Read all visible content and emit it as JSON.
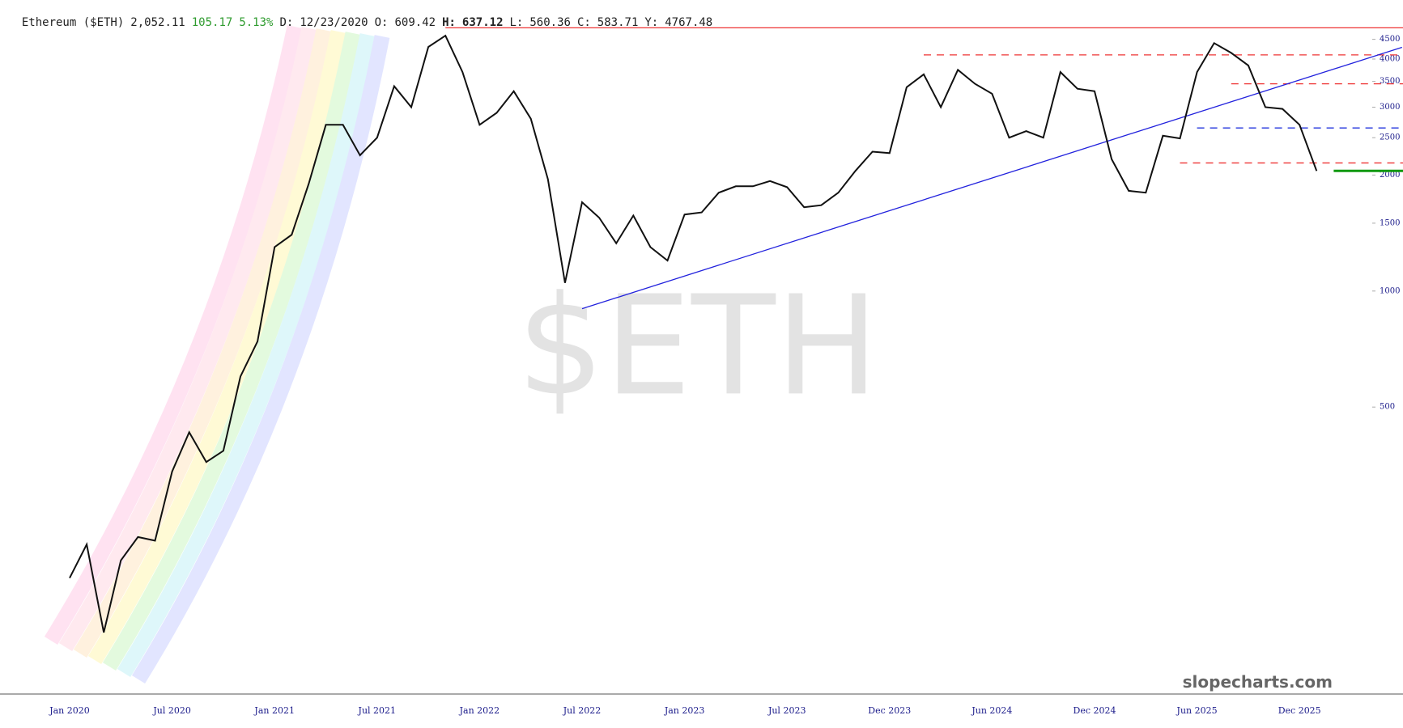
{
  "chart_data": {
    "type": "line",
    "header": {
      "name": "Ethereum ($ETH)",
      "last": "2,052.11",
      "change": "105.17",
      "change_pct": "5.13%",
      "date_label": "D:",
      "date": "12/23/2020",
      "open_label": "O:",
      "open": "609.42",
      "high_label": "H:",
      "high": "637.12",
      "low_label": "L:",
      "low": "560.36",
      "close_label": "C:",
      "close": "583.71",
      "y_label": "Y:",
      "y": "4767.48"
    },
    "watermark": "$ETH",
    "credit": "slopecharts.com",
    "categories": [
      "Jan 2020",
      null,
      null,
      null,
      null,
      null,
      "Jul 2020",
      null,
      null,
      null,
      null,
      null,
      "Jan 2021",
      null,
      null,
      null,
      null,
      null,
      "Jul 2021",
      null,
      null,
      null,
      null,
      null,
      "Jan 2022",
      null,
      null,
      null,
      null,
      null,
      "Jul 2022",
      null,
      null,
      null,
      null,
      null,
      "Jan 2023",
      null,
      null,
      null,
      null,
      null,
      "Jul 2023",
      null,
      null,
      null,
      null,
      null,
      "Dec 2023",
      null,
      null,
      null,
      null,
      null,
      "Jun 2024",
      null,
      null,
      null,
      null,
      null,
      "Dec 2024",
      null,
      null,
      null,
      null,
      null,
      "Jun 2025",
      null,
      null,
      null,
      null,
      null,
      "Dec 2025",
      null
    ],
    "values": [
      180,
      220,
      130,
      200,
      230,
      225,
      340,
      430,
      360,
      385,
      600,
      740,
      1300,
      1400,
      1900,
      2700,
      2700,
      2250,
      2500,
      3400,
      3000,
      4300,
      4600,
      3700,
      2700,
      2900,
      3300,
      2800,
      1950,
      1050,
      1700,
      1550,
      1330,
      1570,
      1300,
      1200,
      1580,
      1600,
      1800,
      1870,
      1870,
      1930,
      1860,
      1650,
      1670,
      1800,
      2050,
      2300,
      2280,
      3380,
      3650,
      3000,
      3750,
      3450,
      3250,
      2500,
      2600,
      2500,
      3700,
      3350,
      3300,
      2200,
      1820,
      1800,
      2530,
      2490,
      3700,
      4400,
      4150,
      3850,
      3000,
      2970,
      2700,
      2050
    ],
    "color": "#111111",
    "log": true,
    "ylim": [
      90,
      4900
    ],
    "yticks": [
      500,
      1000,
      1500,
      2000,
      2500,
      3000,
      3500,
      4000,
      4500
    ],
    "levels": [
      {
        "value": 4820,
        "start": 22,
        "color": "#ee3333",
        "dashed": false
      },
      {
        "value": 4100,
        "start": 50,
        "color": "#ee3333",
        "dashed": true
      },
      {
        "value": 3450,
        "start": 68,
        "color": "#ee3333",
        "dashed": true
      },
      {
        "value": 2650,
        "start": 66,
        "color": "#2233dd",
        "dashed": true
      },
      {
        "value": 2150,
        "start": 65,
        "color": "#ee3333",
        "dashed": true
      },
      {
        "value": 2050,
        "start": 74,
        "color": "#119911",
        "dashed": false
      }
    ],
    "trendline": {
      "x": [
        30,
        78
      ],
      "values": [
        900,
        4290
      ],
      "color": "#2222dd"
    }
  }
}
